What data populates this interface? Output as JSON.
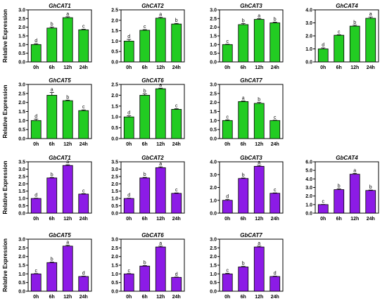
{
  "y_axis_label": "Relative Expression",
  "chart_data": [
    {
      "type": "bar",
      "title": "GhCAT1",
      "categories": [
        "0h",
        "6h",
        "12h",
        "24h"
      ],
      "values": [
        1.0,
        1.95,
        2.55,
        1.85
      ],
      "errors": [
        0.05,
        0.06,
        0.05,
        0.03
      ],
      "sig": [
        "d",
        "b",
        "a",
        "c"
      ],
      "ylim": [
        0,
        3.0
      ],
      "ticks": [
        "0.0",
        "0.5",
        "1.0",
        "1.5",
        "2.0",
        "2.5",
        "3.0"
      ],
      "color": "#22cc22"
    },
    {
      "type": "bar",
      "title": "GhCAT2",
      "categories": [
        "0h",
        "6h",
        "12h",
        "24h"
      ],
      "values": [
        1.0,
        1.52,
        2.1,
        1.82
      ],
      "errors": [
        0.08,
        0.03,
        0.04,
        0.03
      ],
      "sig": [
        "d",
        "c",
        "a",
        "b"
      ],
      "ylim": [
        0,
        2.5
      ],
      "ticks": [
        "0.0",
        "0.5",
        "1.0",
        "1.5",
        "2.0",
        "2.5"
      ],
      "color": "#22cc22"
    },
    {
      "type": "bar",
      "title": "GhCAT3",
      "categories": [
        "0h",
        "6h",
        "12h",
        "24h"
      ],
      "values": [
        1.0,
        2.15,
        2.45,
        2.25
      ],
      "errors": [
        0.02,
        0.06,
        0.05,
        0.04
      ],
      "sig": [
        "c",
        "b",
        "a",
        "b"
      ],
      "ylim": [
        0,
        3.0
      ],
      "ticks": [
        "0.0",
        "0.5",
        "1.0",
        "1.5",
        "2.0",
        "2.5",
        "3.0"
      ],
      "color": "#22cc22"
    },
    {
      "type": "bar",
      "title": "GhCAT4",
      "categories": [
        "0h",
        "6h",
        "12h",
        "24h"
      ],
      "values": [
        1.0,
        2.05,
        2.75,
        3.35
      ],
      "errors": [
        0.08,
        0.04,
        0.07,
        0.1
      ],
      "sig": [
        "d",
        "c",
        "b",
        "a"
      ],
      "ylim": [
        0,
        4.0
      ],
      "ticks": [
        "0.0",
        "1.0",
        "2.0",
        "3.0",
        "4.0"
      ],
      "color": "#22cc22"
    },
    {
      "type": "bar",
      "title": "GhCAT5",
      "categories": [
        "0h",
        "6h",
        "12h",
        "24h"
      ],
      "values": [
        1.0,
        2.4,
        2.1,
        1.55
      ],
      "errors": [
        0.08,
        0.15,
        0.03,
        0.04
      ],
      "sig": [
        "d",
        "a",
        "b",
        "c"
      ],
      "ylim": [
        0,
        3.0
      ],
      "ticks": [
        "0.0",
        "0.5",
        "1.0",
        "1.5",
        "2.0",
        "2.5",
        "3.0"
      ],
      "color": "#22cc22"
    },
    {
      "type": "bar",
      "title": "GhCAT6",
      "categories": [
        "0h",
        "6h",
        "12h",
        "24h"
      ],
      "values": [
        1.0,
        2.0,
        2.3,
        1.35
      ],
      "errors": [
        0.05,
        0.06,
        0.03,
        0.03
      ],
      "sig": [
        "d",
        "b",
        "a",
        "c"
      ],
      "ylim": [
        0,
        2.5
      ],
      "ticks": [
        "0.0",
        "0.5",
        "1.0",
        "1.5",
        "2.0",
        "2.5"
      ],
      "color": "#22cc22"
    },
    {
      "type": "bar",
      "title": "GhCAT7",
      "categories": [
        "0h",
        "6h",
        "12h",
        "24h"
      ],
      "values": [
        1.0,
        2.05,
        1.95,
        1.0
      ],
      "errors": [
        0.04,
        0.03,
        0.05,
        0.02
      ],
      "sig": [
        "c",
        "a",
        "b",
        "c"
      ],
      "ylim": [
        0,
        3.0
      ],
      "ticks": [
        "0.0",
        "0.5",
        "1.0",
        "1.5",
        "2.0",
        "2.5",
        "3.0"
      ],
      "color": "#22cc22"
    },
    {
      "type": "bar",
      "title": "GbCAT1",
      "categories": [
        "0h",
        "6h",
        "12h",
        "24h"
      ],
      "values": [
        1.0,
        2.4,
        3.25,
        1.3
      ],
      "errors": [
        0.02,
        0.03,
        0.05,
        0.03
      ],
      "sig": [
        "d",
        "b",
        "a",
        "c"
      ],
      "ylim": [
        0,
        3.5
      ],
      "ticks": [
        "0.0",
        "0.5",
        "1.0",
        "1.5",
        "2.0",
        "2.5",
        "3.0",
        "3.5"
      ],
      "color": "#8c1be6"
    },
    {
      "type": "bar",
      "title": "GbCAT2",
      "categories": [
        "0h",
        "6h",
        "12h",
        "24h"
      ],
      "values": [
        1.0,
        2.4,
        3.1,
        1.35
      ],
      "errors": [
        0.02,
        0.04,
        0.06,
        0.03
      ],
      "sig": [
        "d",
        "b",
        "a",
        "c"
      ],
      "ylim": [
        0,
        3.5
      ],
      "ticks": [
        "0.0",
        "0.5",
        "1.0",
        "1.5",
        "2.0",
        "2.5",
        "3.0",
        "3.5"
      ],
      "color": "#8c1be6"
    },
    {
      "type": "bar",
      "title": "GbCAT3",
      "categories": [
        "0h",
        "6h",
        "12h",
        "24h"
      ],
      "values": [
        1.0,
        2.7,
        3.65,
        1.55
      ],
      "errors": [
        0.06,
        0.04,
        0.08,
        0.03
      ],
      "sig": [
        "d",
        "b",
        "a",
        "c"
      ],
      "ylim": [
        0,
        4.0
      ],
      "ticks": [
        "0.0",
        "1.0",
        "2.0",
        "3.0",
        "4.0"
      ],
      "color": "#8c1be6"
    },
    {
      "type": "bar",
      "title": "GbCAT4",
      "categories": [
        "0h",
        "6h",
        "12h",
        "24h"
      ],
      "values": [
        1.0,
        2.75,
        4.55,
        2.65
      ],
      "errors": [
        0.02,
        0.1,
        0.1,
        0.05
      ],
      "sig": [
        "c",
        "b",
        "a",
        "b"
      ],
      "ylim": [
        0,
        6.0
      ],
      "ticks": [
        "0.0",
        "1.0",
        "2.0",
        "3.0",
        "4.0",
        "5.0",
        "6.0"
      ],
      "color": "#8c1be6"
    },
    {
      "type": "bar",
      "title": "GbCAT5",
      "categories": [
        "0h",
        "6h",
        "12h",
        "24h"
      ],
      "values": [
        1.0,
        1.65,
        2.6,
        0.85
      ],
      "errors": [
        0.02,
        0.03,
        0.05,
        0.02
      ],
      "sig": [
        "c",
        "b",
        "a",
        "d"
      ],
      "ylim": [
        0,
        3.0
      ],
      "ticks": [
        "0.0",
        "0.5",
        "1.0",
        "1.5",
        "2.0",
        "2.5",
        "3.0"
      ],
      "color": "#8c1be6"
    },
    {
      "type": "bar",
      "title": "GbCAT6",
      "categories": [
        "0h",
        "6h",
        "12h",
        "24h"
      ],
      "values": [
        1.0,
        1.45,
        2.55,
        0.8
      ],
      "errors": [
        0.02,
        0.03,
        0.05,
        0.02
      ],
      "sig": [
        "c",
        "b",
        "a",
        "d"
      ],
      "ylim": [
        0,
        3.0
      ],
      "ticks": [
        "0.0",
        "0.5",
        "1.0",
        "1.5",
        "2.0",
        "2.5",
        "3.0"
      ],
      "color": "#8c1be6"
    },
    {
      "type": "bar",
      "title": "GbCAT7",
      "categories": [
        "0h",
        "6h",
        "12h",
        "24h"
      ],
      "values": [
        1.0,
        1.4,
        2.55,
        0.85
      ],
      "errors": [
        0.03,
        0.03,
        0.05,
        0.02
      ],
      "sig": [
        "c",
        "b",
        "a",
        "d"
      ],
      "ylim": [
        0,
        3.0
      ],
      "ticks": [
        "0.0",
        "0.5",
        "1.0",
        "1.5",
        "2.0",
        "2.5",
        "3.0"
      ],
      "color": "#8c1be6"
    }
  ]
}
